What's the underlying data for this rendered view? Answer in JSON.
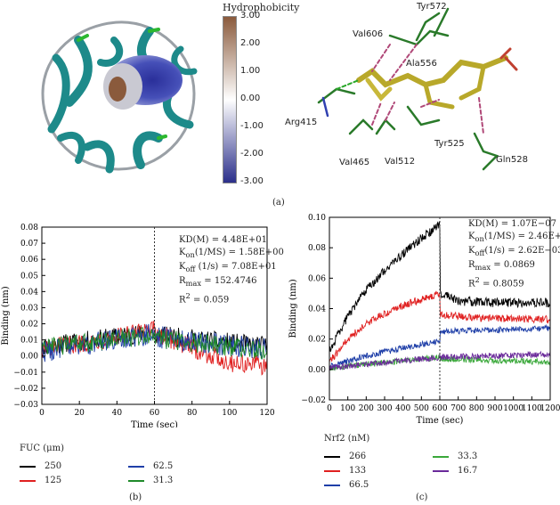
{
  "panel_labels": {
    "a": "(a)",
    "b": "(b)",
    "c": "(c)"
  },
  "protein_panel": {
    "colorbar_title": "Hydrophobicity",
    "colorbar_ticks": [
      "3.00",
      "2.00",
      "1.00",
      "0.00",
      "-1.00",
      "-2.00",
      "-3.00"
    ],
    "colorbar_colors": {
      "top": "#8a5a3c",
      "mid": "#ffffff",
      "bottom": "#2b2f8a"
    },
    "residues": [
      "Tyr572",
      "Val606",
      "Ala556",
      "Arg415",
      "Tyr525",
      "Gln528",
      "Val465",
      "Val512"
    ]
  },
  "stats_b": {
    "kd": "KD(M) = 4.48E+01",
    "kon": "K<sub>on</sub>(1/MS) = 1.58E+00",
    "koff": "K<sub>off</sub> (1/s) = 7.08E+01",
    "rmax": "R<sub>max</sub> = 152.4746",
    "r2": "R<sup>2</sup> = 0.059"
  },
  "stats_c": {
    "kd": "KD(M) = 1.07E−07",
    "kon": "K<sub>on</sub>(1/MS) = 2.46E+04",
    "koff": "K<sub>off</sub>(1/s) = 2.62E−03",
    "rmax": "R<sub>max</sub> = 0.0869",
    "r2": "R<sup>2</sup> = 0.8059"
  },
  "legend_b": {
    "title": "FUC (μm)",
    "items": [
      {
        "label": "250",
        "color": "#000000"
      },
      {
        "label": "125",
        "color": "#e02020"
      },
      {
        "label": "62.5",
        "color": "#1f3fa8"
      },
      {
        "label": "31.3",
        "color": "#1f8a2a"
      }
    ]
  },
  "legend_c": {
    "title": "Nrf2 (nM)",
    "items": [
      {
        "label": "266",
        "color": "#000000"
      },
      {
        "label": "133",
        "color": "#e02020"
      },
      {
        "label": "66.5",
        "color": "#1f3fa8"
      },
      {
        "label": "33.3",
        "color": "#3aa83a"
      },
      {
        "label": "16.7",
        "color": "#6a2a9a"
      }
    ]
  },
  "chart_data": [
    {
      "type": "line",
      "xlabel": "Time (sec)",
      "ylabel": "Binding (nm)",
      "xlim": [
        0,
        120
      ],
      "ylim": [
        -0.03,
        0.08
      ],
      "xticks": [
        0,
        20,
        40,
        60,
        80,
        100,
        120
      ],
      "yticks": [
        -0.03,
        -0.02,
        -0.01,
        0.0,
        0.01,
        0.02,
        0.03,
        0.04,
        0.05,
        0.06,
        0.07,
        0.08
      ],
      "ytick_labels": [
        "−0.03",
        "−0.02",
        "−0.01",
        "0.00",
        "0.01",
        "0.02",
        "0.03",
        "0.04",
        "0.05",
        "0.06",
        "0.07",
        "0.08"
      ],
      "dissociation_start": 60,
      "series": [
        {
          "name": "250",
          "color": "#000000",
          "x": [
            0,
            60,
            61,
            120
          ],
          "y": [
            0.006,
            0.015,
            0.013,
            0.006
          ],
          "noise": 0.006
        },
        {
          "name": "125",
          "color": "#e02020",
          "x": [
            0,
            60,
            61,
            100,
            120
          ],
          "y": [
            0.004,
            0.016,
            0.014,
            -0.004,
            -0.006
          ],
          "noise": 0.006
        },
        {
          "name": "62.5",
          "color": "#1f3fa8",
          "x": [
            0,
            60,
            61,
            120
          ],
          "y": [
            0.003,
            0.014,
            0.012,
            0.004
          ],
          "noise": 0.007
        },
        {
          "name": "31.3",
          "color": "#1f8a2a",
          "x": [
            0,
            60,
            61,
            120
          ],
          "y": [
            0.005,
            0.013,
            0.011,
            0.003
          ],
          "noise": 0.006
        }
      ]
    },
    {
      "type": "line",
      "xlabel": "Time (sec)",
      "ylabel": "Binding (nm)",
      "xlim": [
        0,
        1200
      ],
      "ylim": [
        -0.02,
        0.1
      ],
      "xticks": [
        0,
        100,
        200,
        300,
        400,
        500,
        600,
        700,
        800,
        900,
        1000,
        1100,
        1200
      ],
      "yticks": [
        -0.02,
        0.0,
        0.02,
        0.04,
        0.06,
        0.08,
        0.1
      ],
      "ytick_labels": [
        "−0.02",
        "0.00",
        "0.02",
        "0.04",
        "0.06",
        "0.08",
        "0.10"
      ],
      "dissociation_start": 600,
      "series": [
        {
          "name": "266",
          "color": "#000000",
          "x": [
            0,
            100,
            200,
            300,
            400,
            500,
            600,
            601,
            700,
            900,
            1200
          ],
          "y": [
            0.012,
            0.035,
            0.052,
            0.065,
            0.076,
            0.086,
            0.095,
            0.05,
            0.045,
            0.044,
            0.044
          ],
          "noise": 0.003
        },
        {
          "name": "133",
          "color": "#e02020",
          "x": [
            0,
            100,
            200,
            300,
            400,
            500,
            600,
            601,
            800,
            1200
          ],
          "y": [
            0.005,
            0.02,
            0.03,
            0.037,
            0.042,
            0.046,
            0.05,
            0.036,
            0.034,
            0.033
          ],
          "noise": 0.0025
        },
        {
          "name": "66.5",
          "color": "#1f3fa8",
          "x": [
            0,
            200,
            400,
            600,
            601,
            1200
          ],
          "y": [
            0.002,
            0.009,
            0.014,
            0.019,
            0.025,
            0.027
          ],
          "noise": 0.002
        },
        {
          "name": "33.3",
          "color": "#3aa83a",
          "x": [
            0,
            600,
            601,
            1200
          ],
          "y": [
            0.001,
            0.008,
            0.007,
            0.005
          ],
          "noise": 0.002
        },
        {
          "name": "16.7",
          "color": "#6a2a9a",
          "x": [
            0,
            600,
            601,
            1200
          ],
          "y": [
            0.001,
            0.008,
            0.008,
            0.01
          ],
          "noise": 0.002
        }
      ]
    }
  ]
}
